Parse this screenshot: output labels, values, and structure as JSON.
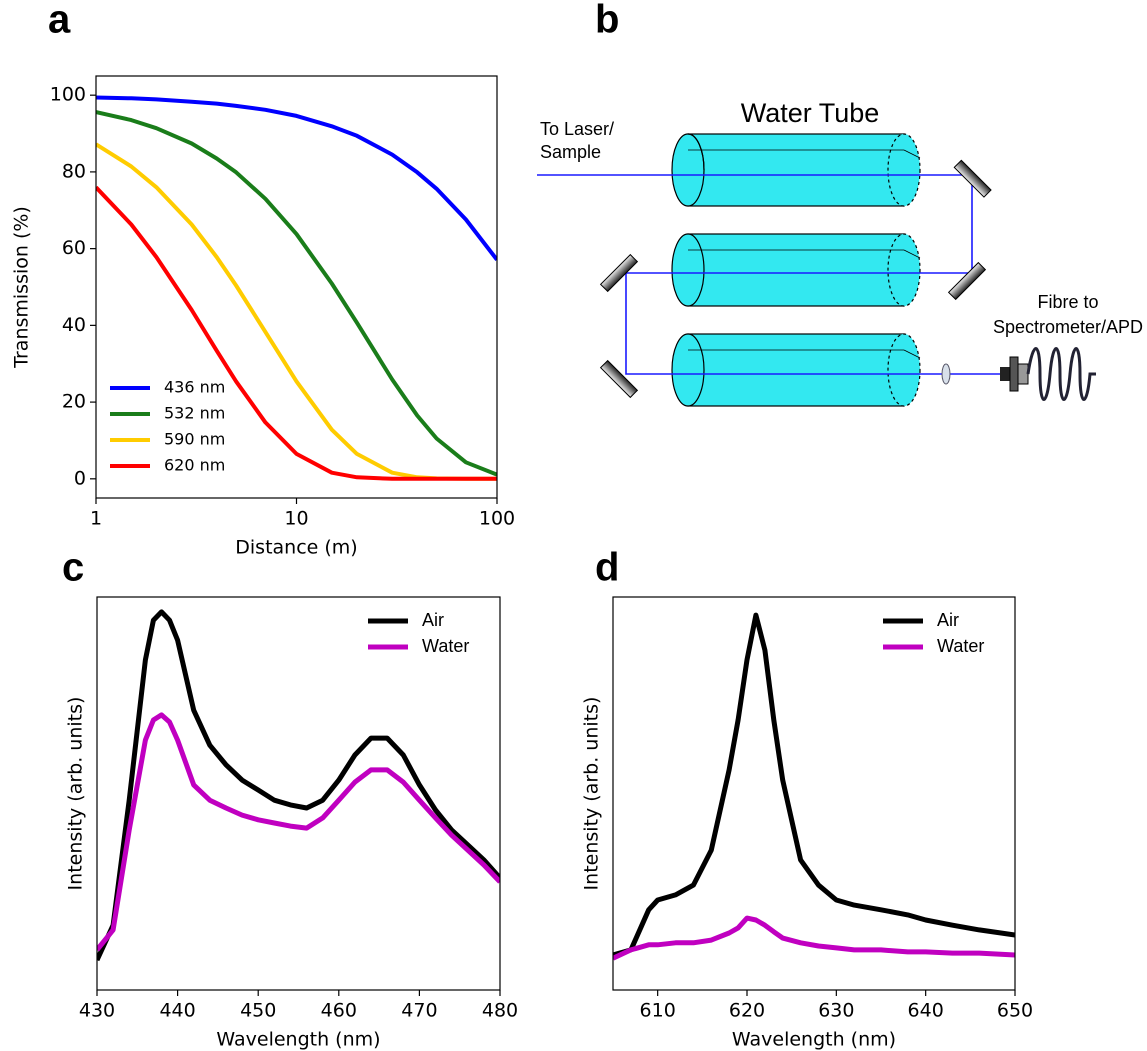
{
  "chart_data": [
    {
      "type": "line",
      "panel_label": "a",
      "xlabel": "Distance (m)",
      "ylabel": "Transmission (%)",
      "x": [
        1,
        1.5,
        2,
        3,
        4,
        5,
        7,
        10,
        15,
        20,
        30,
        40,
        50,
        70,
        100
      ],
      "series": [
        {
          "name": "436 nm",
          "color": "#0000ff",
          "values": [
            99.4,
            99.2,
            98.9,
            98.3,
            97.8,
            97.2,
            96.2,
            94.6,
            91.9,
            89.4,
            84.5,
            79.9,
            75.6,
            67.6,
            57.1
          ]
        },
        {
          "name": "532 nm",
          "color": "#1a7d1a",
          "values": [
            95.6,
            93.5,
            91.4,
            87.4,
            83.5,
            79.9,
            73.0,
            63.8,
            50.9,
            40.7,
            25.9,
            16.5,
            10.5,
            4.3,
            1.1
          ]
        },
        {
          "name": "590 nm",
          "color": "#ffcc00",
          "values": [
            87.2,
            81.4,
            76.0,
            66.3,
            57.8,
            50.4,
            38.3,
            25.4,
            12.8,
            6.5,
            1.6,
            0.4,
            0.1,
            0,
            0
          ]
        },
        {
          "name": "620 nm",
          "color": "#ff0000",
          "values": [
            76.0,
            66.3,
            57.8,
            44.0,
            33.4,
            25.4,
            14.7,
            6.5,
            1.6,
            0.4,
            0,
            0,
            0,
            0,
            0
          ]
        }
      ],
      "xscale": "log",
      "xlim": [
        1,
        100
      ],
      "xticks": [
        1,
        10,
        100
      ],
      "ylim": [
        -5,
        105
      ],
      "yticks": [
        0,
        20,
        40,
        60,
        80,
        100
      ],
      "legend": "lower left"
    },
    {
      "type": "line",
      "panel_label": "c",
      "xlabel": "Wavelength (nm)",
      "ylabel": "Intensity (arb. units)",
      "x": [
        430,
        432,
        434,
        436,
        437,
        438,
        439,
        440,
        442,
        444,
        446,
        448,
        450,
        452,
        454,
        456,
        458,
        460,
        462,
        464,
        466,
        468,
        470,
        472,
        474,
        476,
        478,
        480
      ],
      "series": [
        {
          "name": "Air",
          "color": "#000000",
          "values": [
            0.076,
            0.165,
            0.483,
            0.84,
            0.941,
            0.962,
            0.941,
            0.89,
            0.712,
            0.623,
            0.573,
            0.534,
            0.509,
            0.483,
            0.471,
            0.463,
            0.483,
            0.534,
            0.598,
            0.641,
            0.641,
            0.598,
            0.522,
            0.458,
            0.407,
            0.369,
            0.331,
            0.285
          ]
        },
        {
          "name": "Water",
          "color": "#c000c0",
          "values": [
            0.102,
            0.153,
            0.407,
            0.636,
            0.687,
            0.7,
            0.682,
            0.636,
            0.522,
            0.483,
            0.463,
            0.445,
            0.433,
            0.425,
            0.417,
            0.412,
            0.438,
            0.483,
            0.529,
            0.56,
            0.56,
            0.529,
            0.483,
            0.438,
            0.394,
            0.356,
            0.318,
            0.275
          ]
        }
      ],
      "xlim": [
        430,
        480
      ],
      "xticks": [
        430,
        440,
        450,
        460,
        470,
        480
      ],
      "ylim": [
        0,
        1
      ],
      "legend": "upper right"
    },
    {
      "type": "line",
      "panel_label": "d",
      "xlabel": "Wavelength (nm)",
      "ylabel": "Intensity (arb. units)",
      "x": [
        605,
        607,
        609,
        610,
        612,
        614,
        616,
        618,
        619,
        620,
        621,
        622,
        623,
        624,
        626,
        628,
        630,
        632,
        635,
        638,
        640,
        643,
        646,
        650
      ],
      "series": [
        {
          "name": "Air",
          "color": "#000000",
          "values": [
            0.089,
            0.102,
            0.204,
            0.229,
            0.242,
            0.267,
            0.356,
            0.56,
            0.687,
            0.84,
            0.954,
            0.865,
            0.687,
            0.534,
            0.331,
            0.267,
            0.229,
            0.216,
            0.204,
            0.191,
            0.178,
            0.165,
            0.153,
            0.14
          ]
        },
        {
          "name": "Water",
          "color": "#c000c0",
          "values": [
            0.081,
            0.102,
            0.115,
            0.115,
            0.12,
            0.12,
            0.127,
            0.145,
            0.158,
            0.183,
            0.178,
            0.165,
            0.148,
            0.132,
            0.12,
            0.112,
            0.107,
            0.102,
            0.102,
            0.097,
            0.097,
            0.094,
            0.094,
            0.089
          ]
        }
      ],
      "xlim": [
        605,
        650
      ],
      "xticks": [
        610,
        620,
        630,
        640,
        650
      ],
      "ylim": [
        0,
        1
      ],
      "legend": "upper right"
    }
  ],
  "diagram": {
    "panel_label": "b",
    "title": "Water Tube",
    "input_label": [
      "To Laser/",
      "Sample"
    ],
    "output_label": [
      "Fibre to",
      "Spectrometer/APD"
    ]
  }
}
